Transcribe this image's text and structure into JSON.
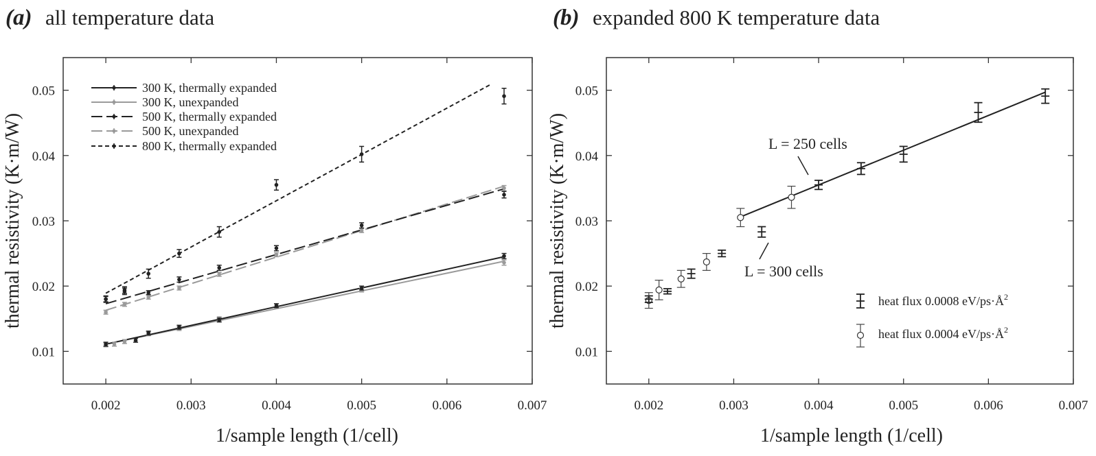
{
  "panels": [
    {
      "letter": "(a)",
      "heading": "all temperature data"
    },
    {
      "letter": "(b)",
      "heading": "expanded 800 K temperature data"
    }
  ],
  "chart_data": [
    {
      "type": "line",
      "title": "all temperature data",
      "xlabel": "1/sample length (1/cell)",
      "ylabel": "thermal resistivity (K·m/W)",
      "xlim": [
        0.0015,
        0.007
      ],
      "ylim": [
        0.005,
        0.055
      ],
      "xticks": [
        0.002,
        0.003,
        0.004,
        0.005,
        0.006,
        0.007
      ],
      "xtick_labels": [
        "0.002",
        "0.003",
        "0.004",
        "0.005",
        "0.006",
        "0.007"
      ],
      "yticks": [
        0.01,
        0.02,
        0.03,
        0.04,
        0.05
      ],
      "ytick_labels": [
        "0.01",
        "0.02",
        "0.03",
        "0.04",
        "0.05"
      ],
      "legend_position": "top-left",
      "series": [
        {
          "name": "300 K, thermally expanded",
          "color": "#222222",
          "dash": "solid",
          "x": [
            0.002,
            0.00235,
            0.0025,
            0.00286,
            0.00333,
            0.004,
            0.005,
            0.00667
          ],
          "y": [
            0.0111,
            0.0117,
            0.0128,
            0.0137,
            0.0148,
            0.017,
            0.0197,
            0.0246
          ],
          "err": [
            0.0003,
            0.0003,
            0.0003,
            0.0003,
            0.0003,
            0.0003,
            0.0003,
            0.0004
          ],
          "fit": [
            [
              0.002,
              0.0111
            ],
            [
              0.00667,
              0.0245
            ]
          ]
        },
        {
          "name": "300 K, unexpanded",
          "color": "#9a9a9a",
          "dash": "solid",
          "x": [
            0.002,
            0.0021,
            0.00222,
            0.0025,
            0.00286,
            0.00333,
            0.005,
            0.00667
          ],
          "y": [
            0.011,
            0.0111,
            0.0115,
            0.0127,
            0.0135,
            0.015,
            0.0194,
            0.0236
          ],
          "err": [
            0.0003,
            0.0003,
            0.0003,
            0.0003,
            0.0003,
            0.0003,
            0.0003,
            0.0004
          ],
          "fit": [
            [
              0.002,
              0.0111
            ],
            [
              0.00667,
              0.0238
            ]
          ]
        },
        {
          "name": "500 K, thermally expanded",
          "color": "#222222",
          "dash": "long-dash",
          "x": [
            0.002,
            0.00222,
            0.0025,
            0.00286,
            0.00333,
            0.004,
            0.005,
            0.00667
          ],
          "y": [
            0.018,
            0.0192,
            0.019,
            0.021,
            0.0228,
            0.0258,
            0.0293,
            0.034
          ],
          "err": [
            0.0004,
            0.0005,
            0.0003,
            0.0004,
            0.0004,
            0.0004,
            0.0004,
            0.0005
          ],
          "fit": [
            [
              0.002,
              0.0173
            ],
            [
              0.00667,
              0.0349
            ]
          ]
        },
        {
          "name": "500 K, unexpanded",
          "color": "#9a9a9a",
          "dash": "long-dash",
          "x": [
            0.002,
            0.00222,
            0.0025,
            0.00286,
            0.00333,
            0.004,
            0.005,
            0.00667
          ],
          "y": [
            0.016,
            0.0172,
            0.0183,
            0.0197,
            0.0218,
            0.0248,
            0.0285,
            0.035
          ],
          "err": [
            0.0003,
            0.0003,
            0.0003,
            0.0003,
            0.0003,
            0.0003,
            0.0003,
            0.0004
          ],
          "fit": [
            [
              0.002,
              0.0163
            ],
            [
              0.00667,
              0.0353
            ]
          ]
        },
        {
          "name": "800 K, thermally expanded",
          "color": "#222222",
          "dash": "short-dash",
          "x": [
            0.002,
            0.00222,
            0.0025,
            0.00286,
            0.00333,
            0.004,
            0.005,
            0.00667
          ],
          "y": [
            0.018,
            0.0194,
            0.0219,
            0.025,
            0.0283,
            0.0355,
            0.0402,
            0.0491
          ],
          "err": [
            0.0005,
            0.0005,
            0.0007,
            0.0006,
            0.0008,
            0.0008,
            0.0012,
            0.0012
          ],
          "fit": [
            [
              0.002,
              0.0189
            ],
            [
              0.0065,
              0.0508
            ]
          ]
        }
      ]
    },
    {
      "type": "scatter",
      "title": "expanded 800 K temperature data",
      "xlabel": "1/sample length (1/cell)",
      "ylabel": "thermal resistivity (K·m/W)",
      "xlim": [
        0.0015,
        0.007
      ],
      "ylim": [
        0.005,
        0.055
      ],
      "xticks": [
        0.002,
        0.003,
        0.004,
        0.005,
        0.006,
        0.007
      ],
      "xtick_labels": [
        "0.002",
        "0.003",
        "0.004",
        "0.005",
        "0.006",
        "0.007"
      ],
      "yticks": [
        0.01,
        0.02,
        0.03,
        0.04,
        0.05
      ],
      "ytick_labels": [
        "0.01",
        "0.02",
        "0.03",
        "0.04",
        "0.05"
      ],
      "legend_position": "bottom-right",
      "fit": [
        [
          0.00308,
          0.0306
        ],
        [
          0.00667,
          0.0497
        ]
      ],
      "series": [
        {
          "name": "heat flux 0.0008 eV/ps·Å",
          "superscript": "2",
          "marker": "none",
          "x": [
            0.002,
            0.00222,
            0.0025,
            0.00286,
            0.00333,
            0.004,
            0.0045,
            0.005,
            0.00588,
            0.00667
          ],
          "y": [
            0.018,
            0.0192,
            0.0219,
            0.025,
            0.0283,
            0.0355,
            0.038,
            0.0402,
            0.0466,
            0.0491
          ],
          "err": [
            0.0005,
            0.0004,
            0.0007,
            0.0005,
            0.0008,
            0.0007,
            0.0009,
            0.0012,
            0.0015,
            0.0011
          ]
        },
        {
          "name": "heat flux 0.0004 eV/ps·Å",
          "superscript": "2",
          "marker": "open-circle",
          "x": [
            0.002,
            0.00212,
            0.00238,
            0.00268,
            0.00308,
            0.00368
          ],
          "y": [
            0.0178,
            0.0194,
            0.0211,
            0.0237,
            0.0305,
            0.0336
          ],
          "err": [
            0.0012,
            0.0015,
            0.0013,
            0.0013,
            0.0014,
            0.0017
          ]
        }
      ],
      "annotations": [
        {
          "text": "L = 250 cells",
          "x": 0.004,
          "y": 0.0355
        },
        {
          "text": "L = 300 cells",
          "x": 0.00333,
          "y": 0.0283
        }
      ]
    }
  ]
}
